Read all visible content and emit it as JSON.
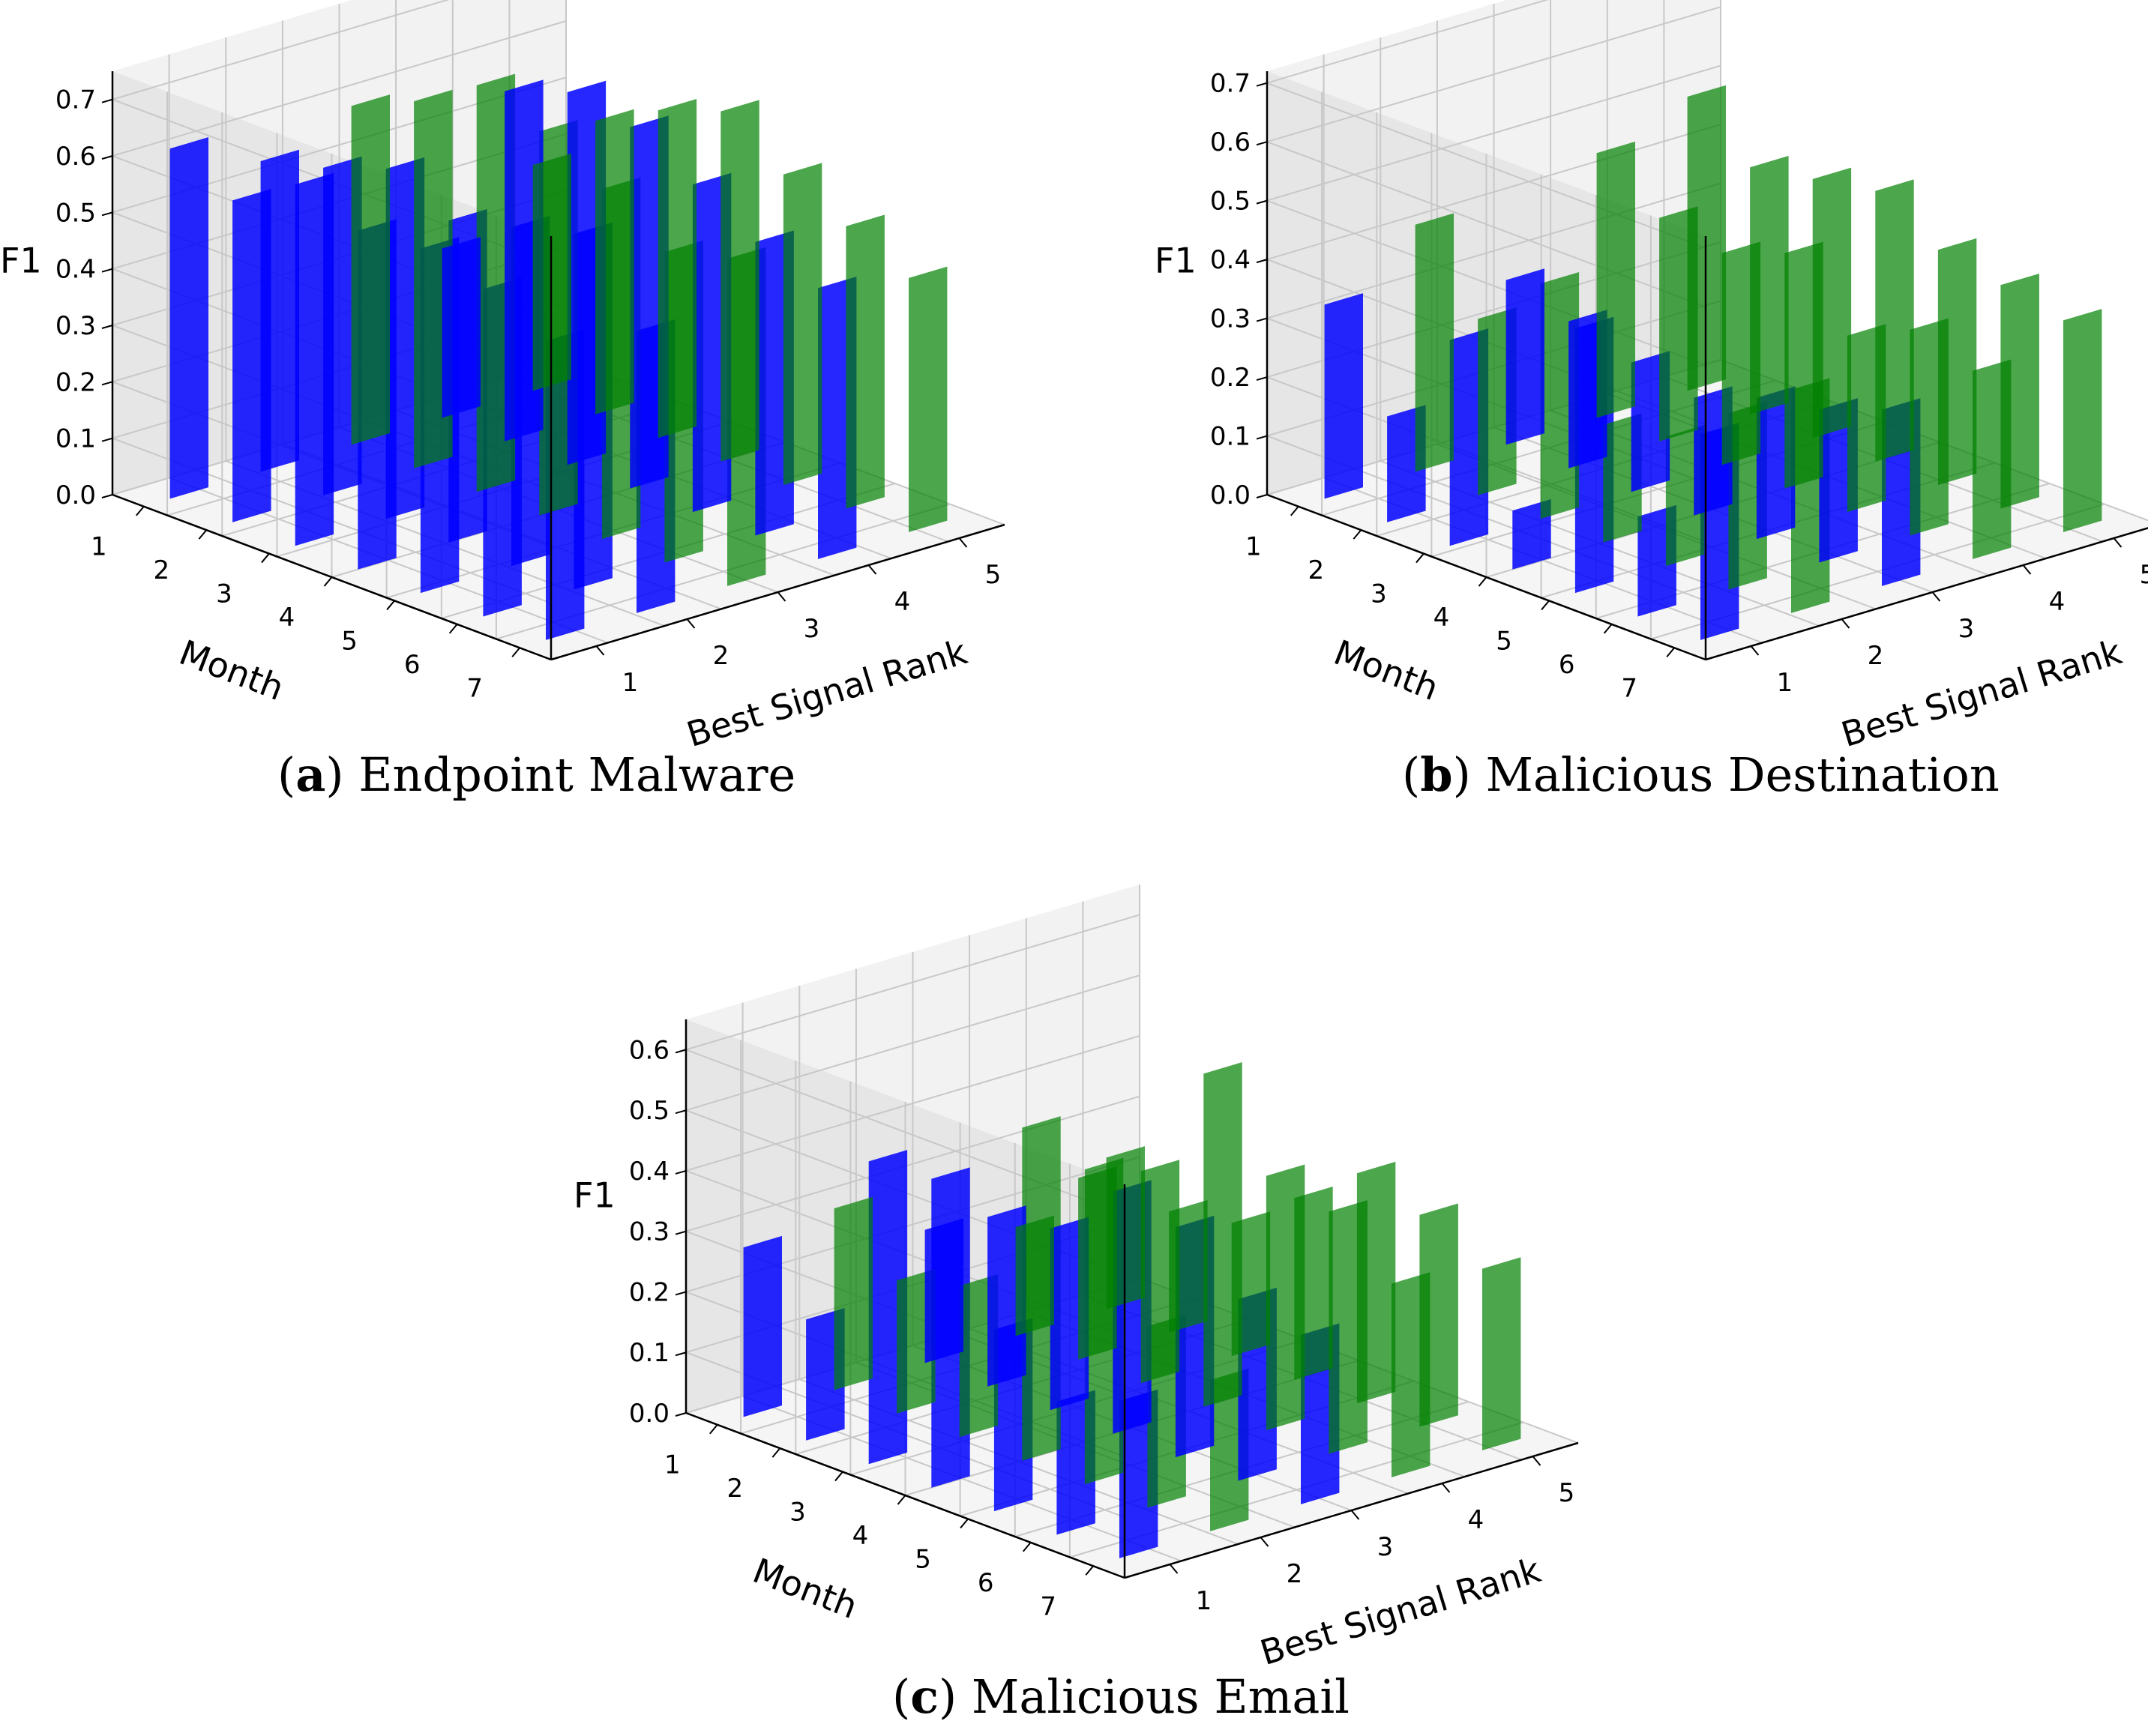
{
  "chart_data": [
    {
      "type": "bar3d",
      "panel": "a",
      "caption_letter": "a",
      "caption_text": "Endpoint Malware",
      "zlabel": "F1",
      "xlabel": "Best Signal Rank",
      "ylabel": "Month",
      "zlim": [
        0,
        0.75
      ],
      "zticks": [
        "0.0",
        "0.1",
        "0.2",
        "0.3",
        "0.4",
        "0.5",
        "0.6",
        "0.7"
      ],
      "xticks": [
        "1",
        "2",
        "3",
        "4",
        "5"
      ],
      "yticks": [
        "1",
        "2",
        "3",
        "4",
        "5",
        "6",
        "7"
      ],
      "series": [
        {
          "name": "rank_1",
          "color": "#0000ff",
          "values": [
            0.62,
            0.57,
            0.64,
            0.6,
            0.61,
            0.58,
            0.53
          ]
        },
        {
          "name": "rank_2",
          "color": "#0000ff",
          "values": [
            0.55,
            0.58,
            0.62,
            0.57,
            0.6,
            0.63,
            0.5
          ]
        },
        {
          "name": "rank_3",
          "color": "#008000",
          "values": [
            0.6,
            0.65,
            0.72,
            0.68,
            0.62,
            0.55,
            0.58
          ]
        },
        {
          "name": "rank_4",
          "color": "#0000ff",
          "values": [
            0.3,
            0.62,
            0.66,
            0.64,
            0.58,
            0.52,
            0.48
          ]
        },
        {
          "name": "rank_5",
          "color": "#008000",
          "values": [
            0.4,
            0.52,
            0.58,
            0.62,
            0.55,
            0.5,
            0.45
          ]
        }
      ]
    },
    {
      "type": "bar3d",
      "panel": "b",
      "caption_letter": "b",
      "caption_text": "Malicious Destination",
      "zlabel": "F1",
      "xlabel": "Best Signal Rank",
      "ylabel": "Month",
      "zlim": [
        0,
        0.72
      ],
      "zticks": [
        "0.0",
        "0.1",
        "0.2",
        "0.3",
        "0.4",
        "0.5",
        "0.6",
        "0.7"
      ],
      "xticks": [
        "1",
        "2",
        "3",
        "4",
        "5"
      ],
      "yticks": [
        "1",
        "2",
        "3",
        "4",
        "5",
        "6",
        "7"
      ],
      "series": [
        {
          "name": "rank_1",
          "color": "#0000ff",
          "values": [
            0.33,
            0.18,
            0.35,
            0.1,
            0.45,
            0.17,
            0.35
          ]
        },
        {
          "name": "rank_2",
          "color": "#008000",
          "values": [
            0.42,
            0.3,
            0.4,
            0.2,
            0.22,
            0.3,
            0.38
          ]
        },
        {
          "name": "rank_3",
          "color": "#0000ff",
          "values": [
            0.28,
            0.25,
            0.22,
            0.2,
            0.24,
            0.26,
            0.3
          ]
        },
        {
          "name": "rank_4",
          "color": "#008000",
          "values": [
            0.45,
            0.38,
            0.36,
            0.4,
            0.3,
            0.35,
            0.32
          ]
        },
        {
          "name": "rank_5",
          "color": "#008000",
          "values": [
            0.5,
            0.42,
            0.44,
            0.46,
            0.4,
            0.38,
            0.36
          ]
        }
      ]
    },
    {
      "type": "bar3d",
      "panel": "c",
      "caption_letter": "c",
      "caption_text": "Malicious Email",
      "zlabel": "F1",
      "xlabel": "Best Signal Rank",
      "ylabel": "Month",
      "zlim": [
        0,
        0.65
      ],
      "zticks": [
        "0.0",
        "0.1",
        "0.2",
        "0.3",
        "0.4",
        "0.5",
        "0.6"
      ],
      "xticks": [
        "1",
        "2",
        "3",
        "4",
        "5"
      ],
      "yticks": [
        "1",
        "2",
        "3",
        "4",
        "5",
        "6",
        "7"
      ],
      "series": [
        {
          "name": "rank_1",
          "color": "#0000ff",
          "values": [
            0.28,
            0.2,
            0.5,
            0.51,
            0.3,
            0.22,
            0.26
          ]
        },
        {
          "name": "rank_2",
          "color": "#008000",
          "values": [
            0.3,
            0.22,
            0.25,
            0.55,
            0.52,
            0.3,
            0.25
          ]
        },
        {
          "name": "rank_3",
          "color": "#0000ff",
          "values": [
            0.22,
            0.28,
            0.3,
            0.4,
            0.38,
            0.3,
            0.28
          ]
        },
        {
          "name": "rank_4",
          "color": "#008000",
          "values": [
            0.18,
            0.3,
            0.35,
            0.55,
            0.42,
            0.4,
            0.32
          ]
        },
        {
          "name": "rank_5",
          "color": "#008000",
          "values": [
            0.25,
            0.2,
            0.22,
            0.3,
            0.38,
            0.35,
            0.3
          ]
        }
      ]
    }
  ]
}
